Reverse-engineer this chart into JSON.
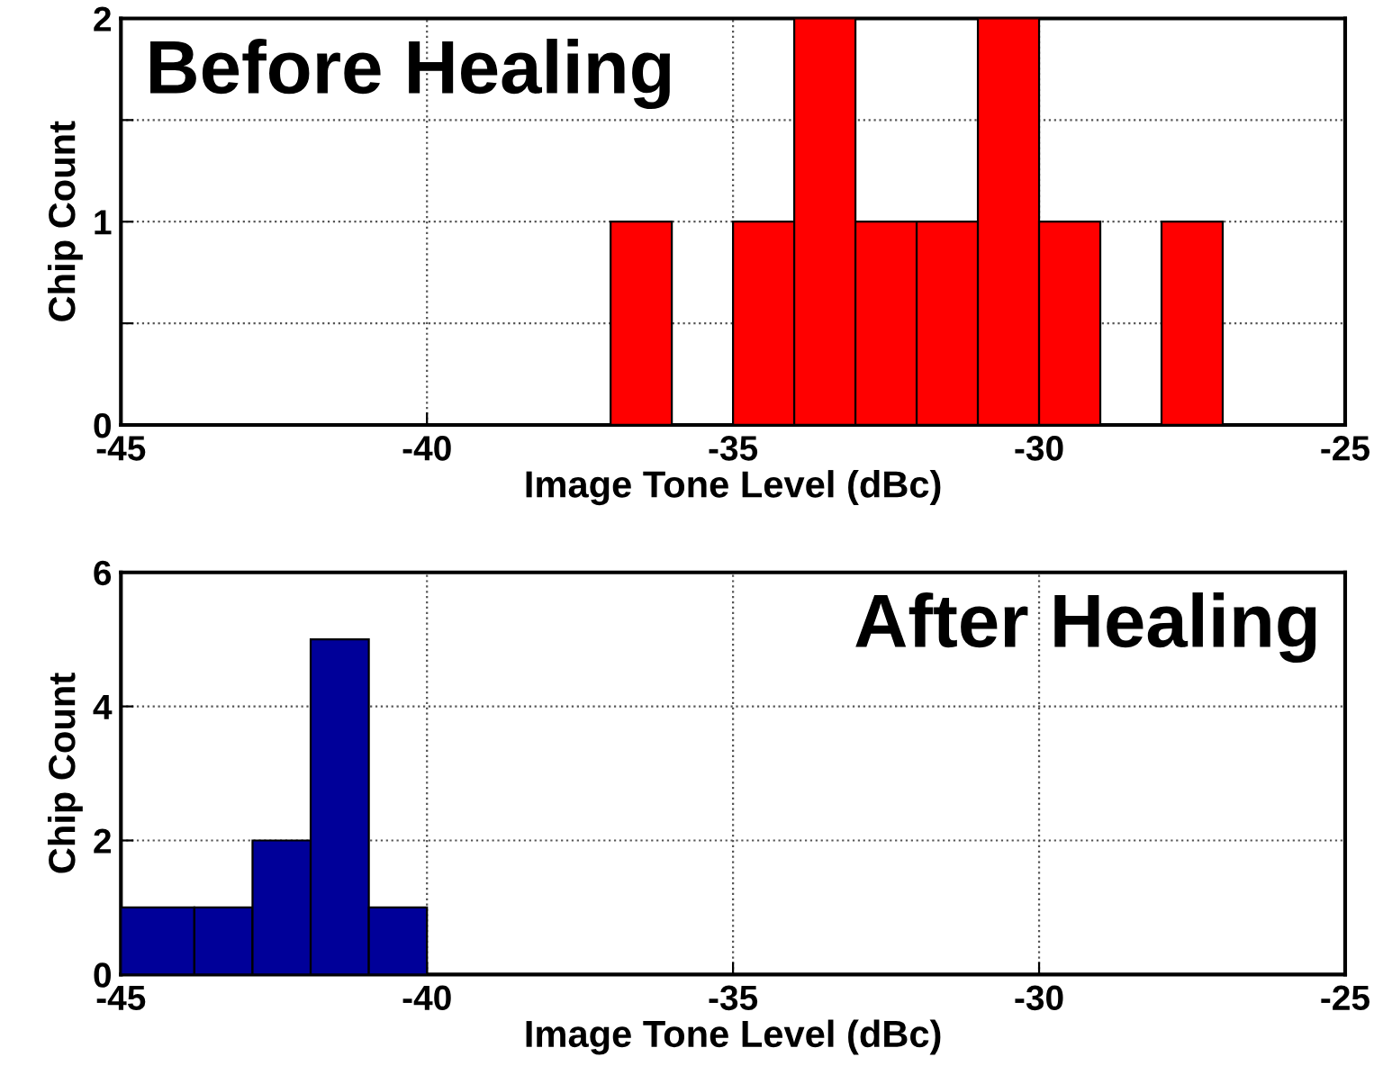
{
  "chart_data": [
    {
      "type": "histogram",
      "xlabel": "Image Tone Level (dBc)",
      "ylabel": "Chip Count",
      "annotations": [
        "Before Healing"
      ],
      "color": "#ff0000",
      "bins": [
        -37,
        -36,
        -35,
        -34,
        -33,
        -32,
        -31,
        -30,
        -29,
        -28,
        -27
      ],
      "values": [
        1,
        0,
        1,
        2,
        1,
        1,
        2,
        1,
        0,
        1
      ],
      "xlim": [
        -45,
        -25
      ],
      "xticks": [
        -45,
        -40,
        -35,
        -30,
        -25
      ],
      "ylim": [
        0,
        2
      ],
      "yticks": [
        0,
        {
          "value": 0.5,
          "label": null
        },
        1,
        {
          "value": 1.5,
          "label": null
        },
        2
      ],
      "grid": true
    },
    {
      "type": "histogram",
      "xlabel": "Image Tone Level (dBc)",
      "ylabel": "Chip Count",
      "annotations": [
        "After Healing"
      ],
      "color": "#000099",
      "bins": [
        -45,
        -43.8,
        -42.85,
        -41.9,
        -40.95,
        -40
      ],
      "values": [
        1,
        1,
        2,
        5,
        1
      ],
      "xlim": [
        -45,
        -25
      ],
      "xticks": [
        -45,
        -40,
        -35,
        -30,
        -25
      ],
      "ylim": [
        0,
        6
      ],
      "yticks": [
        0,
        2,
        4,
        6
      ],
      "grid": true
    }
  ]
}
